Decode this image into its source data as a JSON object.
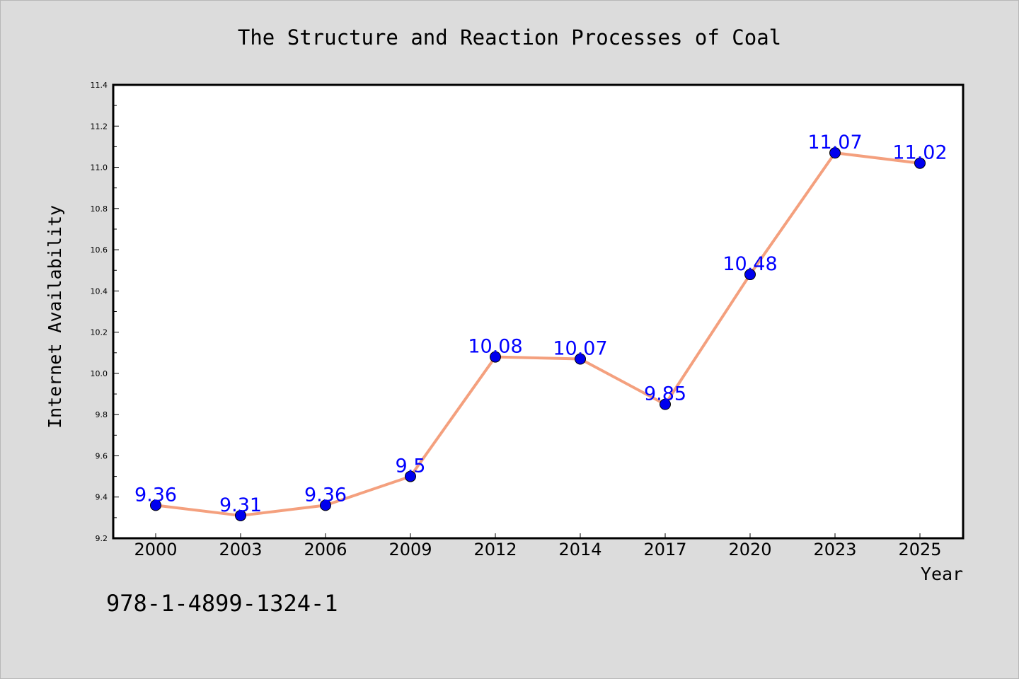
{
  "chart_data": {
    "type": "line",
    "title": "The Structure and Reaction Processes of Coal",
    "xlabel": "Year",
    "ylabel": "Internet Availability",
    "categories": [
      "2000",
      "2003",
      "2006",
      "2009",
      "2012",
      "2014",
      "2017",
      "2020",
      "2023",
      "2025"
    ],
    "values": [
      9.36,
      9.31,
      9.36,
      9.5,
      10.08,
      10.07,
      9.85,
      10.48,
      11.07,
      11.02
    ],
    "data_labels": [
      "9.36",
      "9.31",
      "9.36",
      "9.5",
      "10.08",
      "10.07",
      "9.85",
      "10.48",
      "11.07",
      "11.02"
    ],
    "ylim": [
      9.2,
      11.4
    ],
    "yticks": [
      "9.2",
      "9.4",
      "9.6",
      "9.8",
      "10.0",
      "10.2",
      "10.4",
      "10.6",
      "10.8",
      "11.0",
      "11.2",
      "11.4"
    ],
    "grid": false,
    "legend": "none",
    "line_color": "#f4a07e",
    "marker_color": "#0000ee",
    "label_color": "#0000ff"
  },
  "footer": {
    "code": "978-1-4899-1324-1"
  }
}
